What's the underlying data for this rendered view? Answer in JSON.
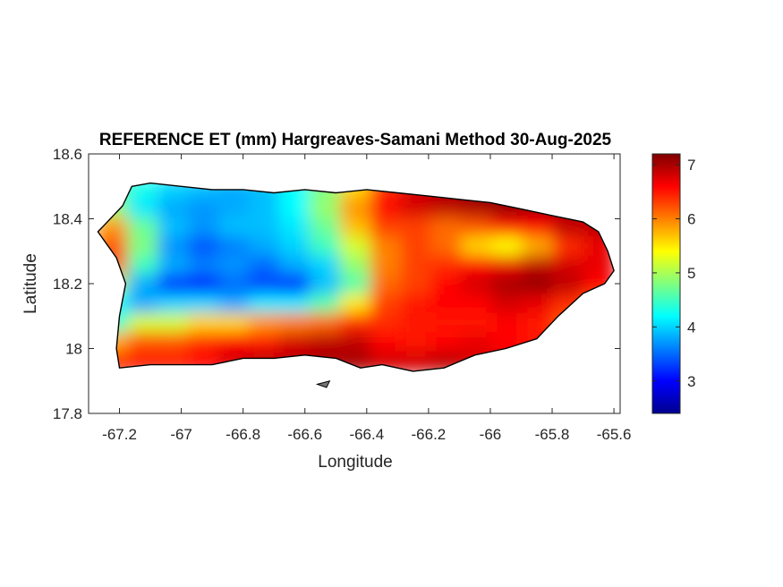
{
  "chart_data": {
    "type": "heatmap",
    "title": "REFERENCE ET (mm) Hargreaves-Samani Method  30-Aug-2025",
    "xlabel": "Longitude",
    "ylabel": "Latitude",
    "xlim": [
      -67.3,
      -65.58
    ],
    "ylim": [
      17.8,
      18.6
    ],
    "xticks": [
      -67.2,
      -67,
      -66.8,
      -66.6,
      -66.4,
      -66.2,
      -66,
      -65.8,
      -65.6
    ],
    "xtick_labels": [
      "-67.2",
      "-67",
      "-66.8",
      "-66.6",
      "-66.4",
      "-66.2",
      "-66",
      "-65.8",
      "-65.6"
    ],
    "yticks": [
      17.8,
      18,
      18.2,
      18.4,
      18.6
    ],
    "ytick_labels": [
      "17.8",
      "18",
      "18.2",
      "18.4",
      "18.6"
    ],
    "colormap": "jet",
    "clim": [
      2.4,
      7.2
    ],
    "colorbar_ticks": [
      3,
      4,
      5,
      6,
      7
    ],
    "colorbar_tick_labels": [
      "3",
      "4",
      "5",
      "6",
      "7"
    ],
    "grid": false,
    "outline": [
      [
        -67.25,
        18.38
      ],
      [
        -67.19,
        18.44
      ],
      [
        -67.16,
        18.5
      ],
      [
        -67.1,
        18.51
      ],
      [
        -67.0,
        18.5
      ],
      [
        -66.9,
        18.49
      ],
      [
        -66.8,
        18.49
      ],
      [
        -66.7,
        18.48
      ],
      [
        -66.6,
        18.49
      ],
      [
        -66.5,
        18.48
      ],
      [
        -66.4,
        18.49
      ],
      [
        -66.3,
        18.48
      ],
      [
        -66.2,
        18.47
      ],
      [
        -66.1,
        18.46
      ],
      [
        -66.0,
        18.45
      ],
      [
        -65.9,
        18.43
      ],
      [
        -65.8,
        18.41
      ],
      [
        -65.7,
        18.39
      ],
      [
        -65.65,
        18.36
      ],
      [
        -65.62,
        18.3
      ],
      [
        -65.6,
        18.24
      ],
      [
        -65.63,
        18.2
      ],
      [
        -65.7,
        18.17
      ],
      [
        -65.78,
        18.1
      ],
      [
        -65.85,
        18.03
      ],
      [
        -65.95,
        18.0
      ],
      [
        -66.05,
        17.98
      ],
      [
        -66.15,
        17.94
      ],
      [
        -66.25,
        17.93
      ],
      [
        -66.35,
        17.95
      ],
      [
        -66.42,
        17.94
      ],
      [
        -66.5,
        17.97
      ],
      [
        -66.6,
        17.98
      ],
      [
        -66.7,
        17.97
      ],
      [
        -66.8,
        17.97
      ],
      [
        -66.9,
        17.95
      ],
      [
        -67.0,
        17.95
      ],
      [
        -67.1,
        17.95
      ],
      [
        -67.2,
        17.94
      ],
      [
        -67.21,
        18.0
      ],
      [
        -67.2,
        18.1
      ],
      [
        -67.18,
        18.2
      ],
      [
        -67.21,
        18.28
      ],
      [
        -67.27,
        18.36
      ]
    ],
    "islands": [
      [
        [
          -66.56,
          17.89
        ],
        [
          -66.52,
          17.9
        ],
        [
          -66.53,
          17.88
        ]
      ]
    ],
    "values": [
      [
        4.6,
        4.3,
        4.0,
        3.9,
        3.8,
        3.9,
        4.2,
        4.8,
        5.6,
        6.4,
        6.8,
        7.0,
        7.1,
        7.1,
        7.1,
        6.9,
        6.7
      ],
      [
        4.9,
        4.1,
        3.8,
        3.7,
        3.8,
        3.9,
        4.2,
        4.9,
        5.9,
        6.6,
        6.8,
        6.9,
        7.0,
        7.1,
        7.0,
        6.9,
        6.8
      ],
      [
        5.9,
        4.7,
        3.9,
        3.7,
        3.9,
        3.9,
        4.1,
        4.7,
        5.7,
        6.3,
        6.3,
        6.1,
        6.2,
        6.5,
        6.6,
        6.9,
        6.9
      ],
      [
        6.2,
        4.8,
        3.7,
        3.4,
        3.6,
        3.8,
        4.0,
        4.5,
        5.2,
        6.0,
        6.3,
        6.1,
        5.6,
        5.4,
        5.8,
        6.4,
        6.7
      ],
      [
        6.2,
        4.5,
        3.8,
        3.6,
        3.7,
        3.5,
        3.8,
        4.0,
        4.9,
        6.0,
        6.3,
        6.4,
        6.6,
        6.7,
        6.9,
        6.8,
        6.7
      ],
      [
        5.0,
        3.8,
        3.2,
        3.1,
        3.5,
        3.3,
        3.1,
        3.9,
        4.6,
        6.1,
        6.3,
        6.6,
        6.8,
        7.0,
        7.1,
        6.9,
        6.6
      ],
      [
        4.2,
        3.8,
        4.0,
        4.0,
        3.8,
        4.1,
        4.1,
        4.6,
        5.5,
        6.3,
        6.5,
        6.6,
        6.6,
        6.8,
        6.7,
        6.4,
        6.2
      ],
      [
        4.4,
        5.2,
        5.2,
        5.6,
        5.6,
        5.9,
        6.0,
        6.1,
        6.4,
        6.4,
        6.5,
        6.5,
        6.5,
        6.6,
        6.5,
        6.2,
        6.1
      ],
      [
        5.8,
        6.2,
        6.2,
        6.4,
        6.6,
        6.5,
        6.8,
        6.9,
        6.9,
        6.6,
        6.5,
        6.6,
        6.7,
        6.6,
        6.5,
        6.3,
        6.2
      ],
      [
        6.4,
        6.5,
        6.5,
        6.6,
        6.8,
        6.9,
        6.9,
        7.0,
        7.0,
        6.8,
        6.8,
        6.9,
        6.8,
        6.7,
        6.6,
        6.4,
        6.2
      ]
    ]
  }
}
